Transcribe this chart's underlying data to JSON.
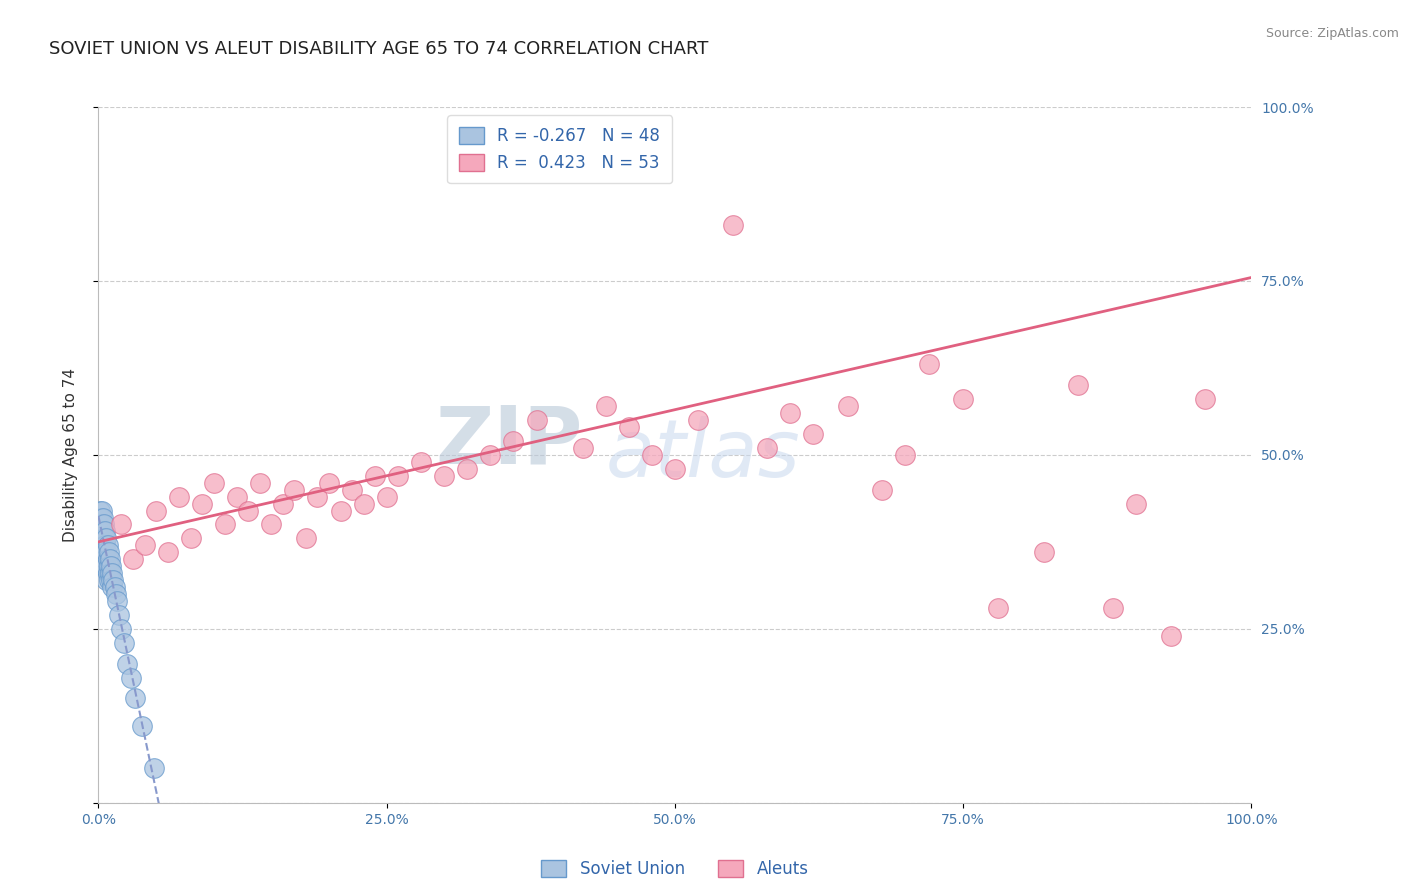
{
  "title": "SOVIET UNION VS ALEUT DISABILITY AGE 65 TO 74 CORRELATION CHART",
  "source": "Source: ZipAtlas.com",
  "ylabel": "Disability Age 65 to 74",
  "xlim": [
    0,
    1.0
  ],
  "ylim": [
    0,
    1.0
  ],
  "xticks": [
    0.0,
    0.25,
    0.5,
    0.75,
    1.0
  ],
  "xticklabels": [
    "0.0%",
    "25.0%",
    "50.0%",
    "75.0%",
    "100.0%"
  ],
  "yticks": [
    0.0,
    0.25,
    0.5,
    0.75,
    1.0
  ],
  "yticklabels_right": [
    "",
    "25.0%",
    "50.0%",
    "75.0%",
    "100.0%"
  ],
  "soviet_R": -0.267,
  "soviet_N": 48,
  "aleut_R": 0.423,
  "aleut_N": 53,
  "soviet_color": "#aac4e0",
  "aleut_color": "#f5a8bc",
  "soviet_edge_color": "#6699cc",
  "aleut_edge_color": "#e07090",
  "trend_soviet_color": "#8899cc",
  "trend_aleut_color": "#e06080",
  "watermark_zip": "ZIP",
  "watermark_atlas": "atlas",
  "watermark_color_zip": "#c0ccdd",
  "watermark_color_atlas": "#c8d8ee",
  "background_color": "#ffffff",
  "title_fontsize": 13,
  "axis_label_fontsize": 11,
  "tick_fontsize": 10,
  "legend_fontsize": 12,
  "soviet_x": [
    0.001,
    0.001,
    0.002,
    0.002,
    0.002,
    0.003,
    0.003,
    0.003,
    0.003,
    0.004,
    0.004,
    0.004,
    0.004,
    0.005,
    0.005,
    0.005,
    0.005,
    0.006,
    0.006,
    0.006,
    0.007,
    0.007,
    0.007,
    0.007,
    0.008,
    0.008,
    0.008,
    0.009,
    0.009,
    0.009,
    0.01,
    0.01,
    0.011,
    0.011,
    0.012,
    0.012,
    0.013,
    0.014,
    0.015,
    0.016,
    0.018,
    0.02,
    0.022,
    0.025,
    0.028,
    0.032,
    0.038,
    0.048
  ],
  "soviet_y": [
    0.42,
    0.4,
    0.41,
    0.39,
    0.37,
    0.42,
    0.4,
    0.38,
    0.36,
    0.41,
    0.39,
    0.37,
    0.35,
    0.4,
    0.38,
    0.36,
    0.34,
    0.39,
    0.37,
    0.35,
    0.38,
    0.36,
    0.34,
    0.32,
    0.37,
    0.35,
    0.33,
    0.36,
    0.34,
    0.32,
    0.35,
    0.33,
    0.34,
    0.32,
    0.33,
    0.31,
    0.32,
    0.31,
    0.3,
    0.29,
    0.27,
    0.25,
    0.23,
    0.2,
    0.18,
    0.15,
    0.11,
    0.05
  ],
  "aleut_x": [
    0.02,
    0.03,
    0.04,
    0.05,
    0.06,
    0.07,
    0.08,
    0.09,
    0.1,
    0.11,
    0.12,
    0.13,
    0.14,
    0.15,
    0.16,
    0.17,
    0.18,
    0.19,
    0.2,
    0.21,
    0.22,
    0.23,
    0.24,
    0.25,
    0.26,
    0.28,
    0.3,
    0.32,
    0.34,
    0.36,
    0.38,
    0.42,
    0.44,
    0.46,
    0.48,
    0.5,
    0.52,
    0.55,
    0.58,
    0.6,
    0.62,
    0.65,
    0.68,
    0.7,
    0.72,
    0.75,
    0.78,
    0.82,
    0.85,
    0.88,
    0.9,
    0.93,
    0.96
  ],
  "aleut_y": [
    0.4,
    0.35,
    0.37,
    0.42,
    0.36,
    0.44,
    0.38,
    0.43,
    0.46,
    0.4,
    0.44,
    0.42,
    0.46,
    0.4,
    0.43,
    0.45,
    0.38,
    0.44,
    0.46,
    0.42,
    0.45,
    0.43,
    0.47,
    0.44,
    0.47,
    0.49,
    0.47,
    0.48,
    0.5,
    0.52,
    0.55,
    0.51,
    0.57,
    0.54,
    0.5,
    0.48,
    0.55,
    0.83,
    0.51,
    0.56,
    0.53,
    0.57,
    0.45,
    0.5,
    0.63,
    0.58,
    0.28,
    0.36,
    0.6,
    0.28,
    0.43,
    0.24,
    0.58
  ],
  "aleut_trend_x": [
    0.0,
    1.0
  ],
  "aleut_trend_y": [
    0.375,
    0.755
  ]
}
